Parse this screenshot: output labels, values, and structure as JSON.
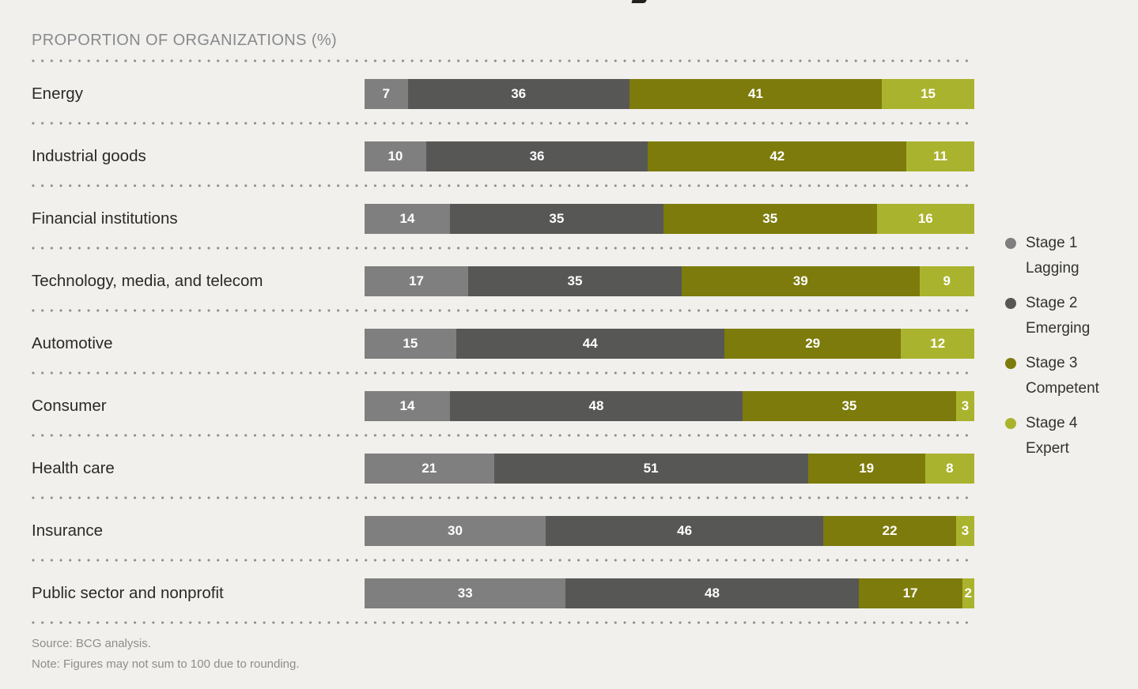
{
  "header": {
    "title": "PROPORTION OF ORGANIZATIONS (%)"
  },
  "chart_data": {
    "type": "bar",
    "orientation": "horizontal",
    "stacked": true,
    "unit": "%",
    "title": "PROPORTION OF ORGANIZATIONS (%)",
    "value_labels": "inside, white, bold",
    "legend_position": "right",
    "grid": "dotted row separators",
    "categories": [
      "Energy",
      "Industrial goods",
      "Financial institutions",
      "Technology, media, and telecom",
      "Automotive",
      "Consumer",
      "Health care",
      "Insurance",
      "Public sector and nonprofit"
    ],
    "series": [
      {
        "name": "Stage 1 Lagging",
        "color": "#7f7f7f",
        "values": [
          7,
          10,
          14,
          17,
          15,
          14,
          21,
          30,
          33
        ]
      },
      {
        "name": "Stage 2 Emerging",
        "color": "#575756",
        "values": [
          36,
          36,
          35,
          35,
          44,
          48,
          51,
          46,
          48
        ]
      },
      {
        "name": "Stage 3 Competent",
        "color": "#7d7b0b",
        "values": [
          41,
          42,
          35,
          39,
          29,
          35,
          19,
          22,
          17
        ]
      },
      {
        "name": "Stage 4 Expert",
        "color": "#aab32d",
        "values": [
          15,
          11,
          16,
          9,
          12,
          3,
          8,
          3,
          2
        ]
      }
    ]
  },
  "legend": {
    "items": [
      {
        "stage": "Stage 1",
        "name": "Lagging",
        "color": "#7f7f7f"
      },
      {
        "stage": "Stage 2",
        "name": "Emerging",
        "color": "#575756"
      },
      {
        "stage": "Stage 3",
        "name": "Competent",
        "color": "#7d7b0b"
      },
      {
        "stage": "Stage 4",
        "name": "Expert",
        "color": "#aab32d"
      }
    ]
  },
  "footer": {
    "source": "Source: BCG analysis.",
    "note": "Note: Figures may not sum to 100 due to rounding."
  }
}
